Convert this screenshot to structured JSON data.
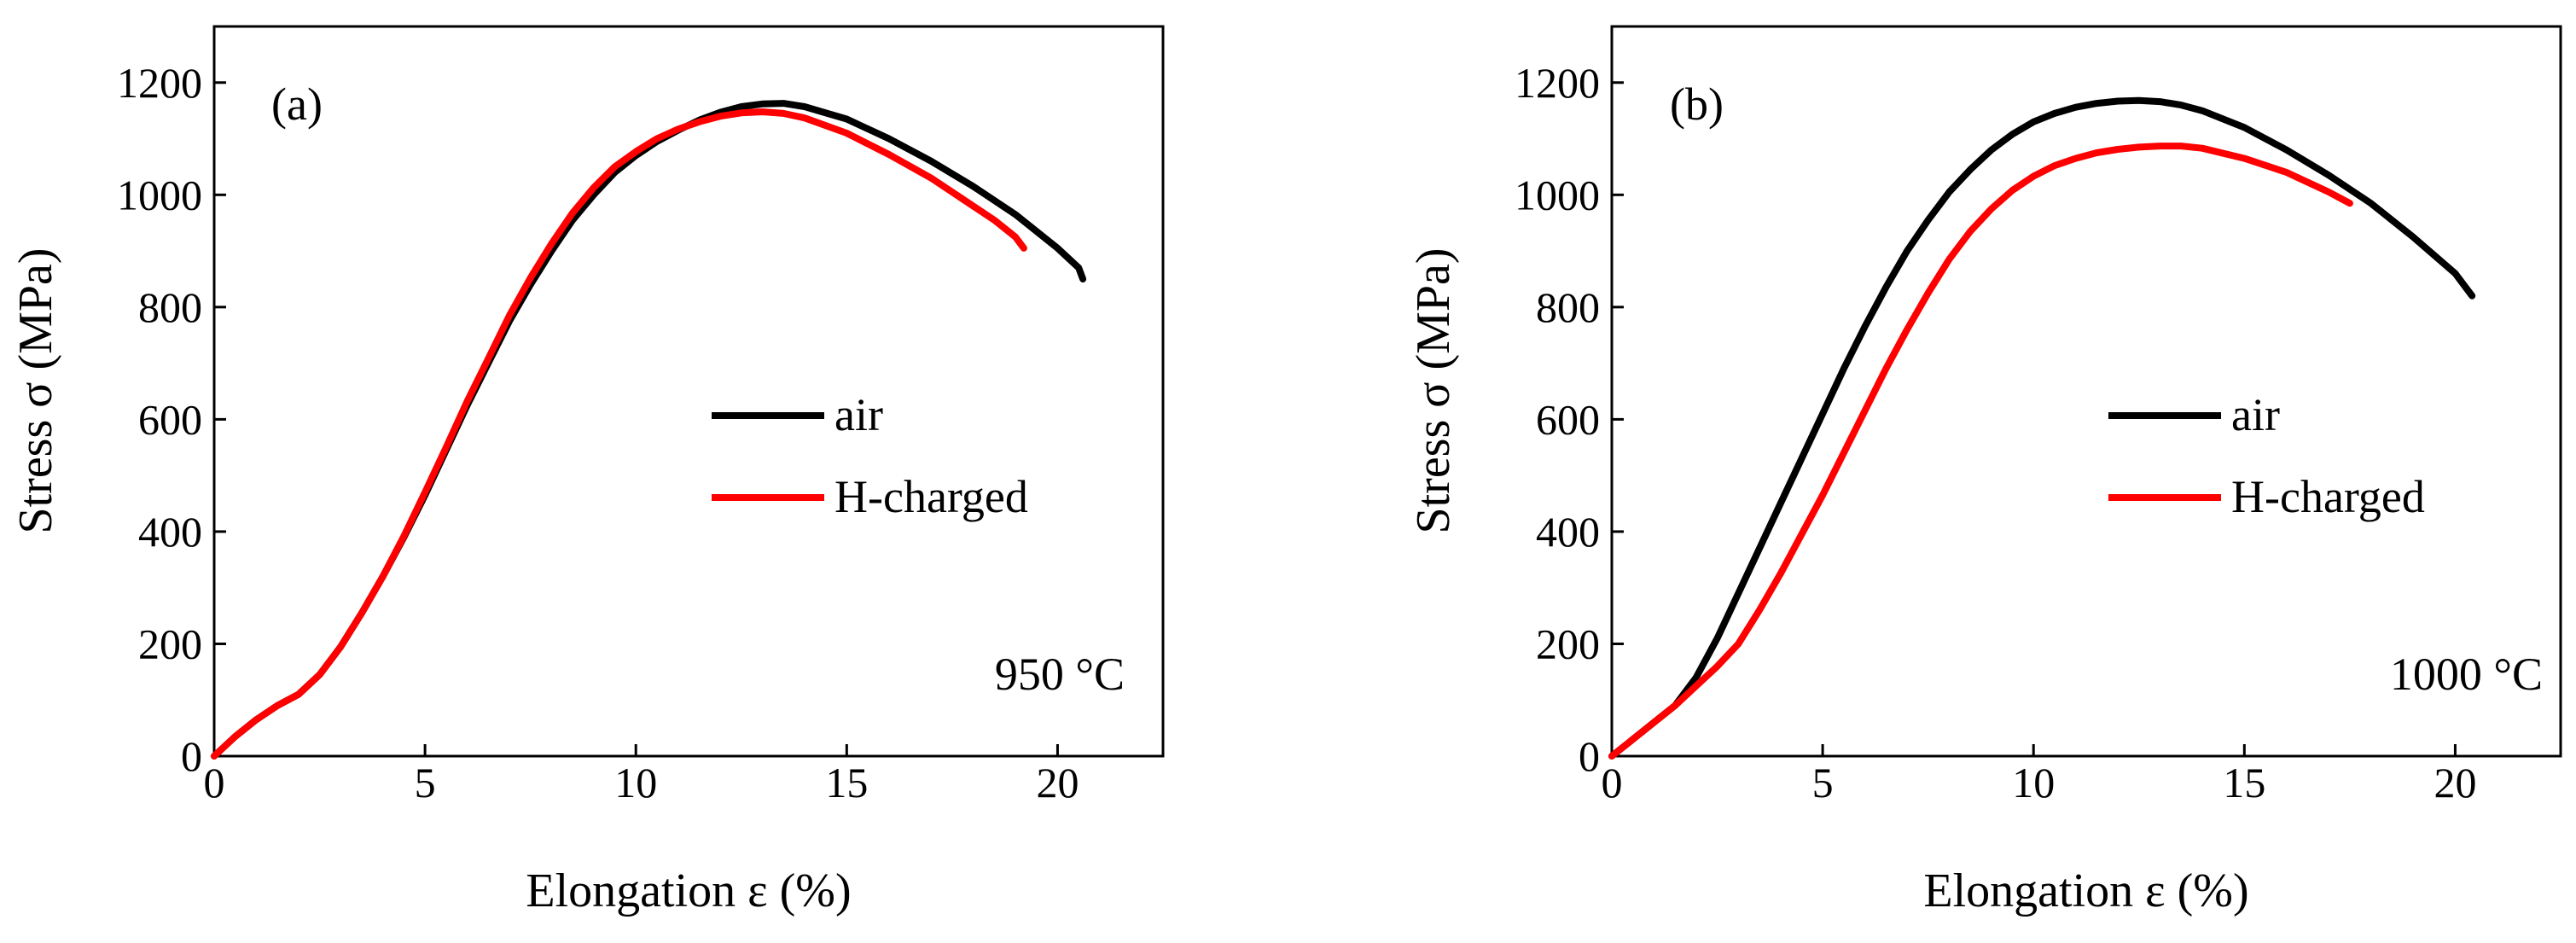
{
  "chart_data": [
    {
      "type": "line",
      "panel_label": "(a)",
      "annotation": "950 °C",
      "xlabel": "Elongation ε (%)",
      "ylabel": "Stress σ (MPa)",
      "xlim": [
        0,
        22.5
      ],
      "ylim": [
        0,
        1300
      ],
      "xticks": [
        0,
        5,
        10,
        15,
        20
      ],
      "yticks": [
        0,
        200,
        400,
        600,
        800,
        1000,
        1200
      ],
      "legend_position": "center-right",
      "series": [
        {
          "name": "air",
          "color": "#000000",
          "x": [
            0,
            0.5,
            1,
            1.5,
            2,
            2.5,
            3,
            3.5,
            4,
            4.5,
            5,
            5.5,
            6,
            6.5,
            7,
            7.5,
            8,
            8.5,
            9,
            9.5,
            10,
            10.5,
            11,
            11.5,
            12,
            12.5,
            13,
            13.5,
            14,
            15,
            16,
            17,
            18,
            19,
            20,
            20.5,
            20.6
          ],
          "y": [
            0,
            35,
            65,
            90,
            110,
            145,
            195,
            255,
            320,
            390,
            465,
            545,
            625,
            700,
            775,
            840,
            900,
            955,
            1000,
            1040,
            1070,
            1095,
            1115,
            1133,
            1147,
            1157,
            1162,
            1163,
            1157,
            1135,
            1100,
            1060,
            1015,
            965,
            905,
            870,
            850
          ]
        },
        {
          "name": "H-charged",
          "color": "#ff0000",
          "x": [
            0,
            0.5,
            1,
            1.5,
            2,
            2.5,
            3,
            3.5,
            4,
            4.5,
            5,
            5.5,
            6,
            6.5,
            7,
            7.5,
            8,
            8.5,
            9,
            9.5,
            10,
            10.5,
            11,
            11.5,
            12,
            12.5,
            13,
            13.5,
            14,
            15,
            16,
            17,
            18,
            18.5,
            19,
            19.2
          ],
          "y": [
            0,
            35,
            65,
            90,
            110,
            145,
            195,
            255,
            320,
            392,
            470,
            550,
            632,
            708,
            785,
            852,
            913,
            968,
            1013,
            1050,
            1077,
            1100,
            1117,
            1130,
            1140,
            1146,
            1148,
            1145,
            1137,
            1110,
            1072,
            1030,
            980,
            955,
            925,
            905
          ]
        }
      ]
    },
    {
      "type": "line",
      "panel_label": "(b)",
      "annotation": "1000 °C",
      "xlabel": "Elongation ε (%)",
      "ylabel": "Stress σ (MPa)",
      "xlim": [
        0,
        22.5
      ],
      "ylim": [
        0,
        1300
      ],
      "xticks": [
        0,
        5,
        10,
        15,
        20
      ],
      "yticks": [
        0,
        200,
        400,
        600,
        800,
        1000,
        1200
      ],
      "legend_position": "center-right",
      "series": [
        {
          "name": "air",
          "color": "#000000",
          "x": [
            0,
            0.5,
            1,
            1.5,
            2,
            2.5,
            3,
            3.5,
            4,
            4.5,
            5,
            5.5,
            6,
            6.5,
            7,
            7.5,
            8,
            8.5,
            9,
            9.5,
            10,
            10.5,
            11,
            11.5,
            12,
            12.5,
            13,
            13.5,
            14,
            15,
            16,
            17,
            18,
            19,
            20,
            20.4
          ],
          "y": [
            0,
            30,
            60,
            90,
            140,
            210,
            290,
            370,
            450,
            530,
            610,
            690,
            765,
            835,
            900,
            955,
            1005,
            1045,
            1080,
            1108,
            1130,
            1145,
            1156,
            1163,
            1167,
            1168,
            1166,
            1160,
            1150,
            1120,
            1080,
            1035,
            985,
            925,
            860,
            820
          ]
        },
        {
          "name": "H-charged",
          "color": "#ff0000",
          "x": [
            0,
            0.5,
            1,
            1.5,
            2,
            2.5,
            3,
            3.5,
            4,
            4.5,
            5,
            5.5,
            6,
            6.5,
            7,
            7.5,
            8,
            8.5,
            9,
            9.5,
            10,
            10.5,
            11,
            11.5,
            12,
            12.5,
            13,
            13.5,
            14,
            15,
            16,
            17,
            17.5
          ],
          "y": [
            0,
            30,
            60,
            90,
            125,
            160,
            200,
            260,
            325,
            395,
            465,
            540,
            615,
            690,
            760,
            825,
            885,
            935,
            975,
            1008,
            1033,
            1052,
            1065,
            1075,
            1081,
            1085,
            1087,
            1087,
            1083,
            1065,
            1040,
            1005,
            985
          ]
        }
      ]
    }
  ]
}
